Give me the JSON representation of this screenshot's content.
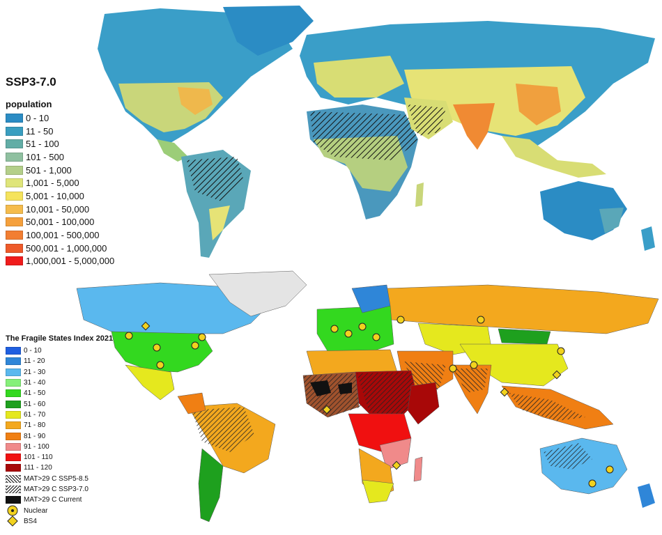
{
  "top_map": {
    "title": "SSP3-7.0",
    "legend_title": "population",
    "classes": [
      {
        "label": "0 - 10",
        "color": "#2b8cc4"
      },
      {
        "label": "11 - 50",
        "color": "#3a9ec0"
      },
      {
        "label": "51 - 100",
        "color": "#62ada6"
      },
      {
        "label": "101 - 500",
        "color": "#8fc0a0"
      },
      {
        "label": "501 - 1,000",
        "color": "#b4cf8a"
      },
      {
        "label": "1,001 - 5,000",
        "color": "#dfe57a"
      },
      {
        "label": "5,001 - 10,000",
        "color": "#f5e35c"
      },
      {
        "label": "10,001 - 50,000",
        "color": "#f5bc4d"
      },
      {
        "label": "50,001 - 100,000",
        "color": "#f5a03c"
      },
      {
        "label": "100,001 - 500,000",
        "color": "#f27e32"
      },
      {
        "label": "500,001 - 1,000,000",
        "color": "#ee5a2a"
      },
      {
        "label": "1,000,001 - 5,000,000",
        "color": "#f01c1c"
      }
    ]
  },
  "bottom_map": {
    "legend_title": "The Fragile States Index 2021",
    "classes": [
      {
        "label": "0 - 10",
        "color": "#1f5fe0"
      },
      {
        "label": "11 - 20",
        "color": "#2f86d8"
      },
      {
        "label": "21 - 30",
        "color": "#5ab8ee"
      },
      {
        "label": "31 - 40",
        "color": "#86f07a"
      },
      {
        "label": "41 - 50",
        "color": "#33d81f"
      },
      {
        "label": "51 - 60",
        "color": "#1ea01e"
      },
      {
        "label": "61 - 70",
        "color": "#e5e81e"
      },
      {
        "label": "71 - 80",
        "color": "#f3a81e"
      },
      {
        "label": "81 - 90",
        "color": "#f07f13"
      },
      {
        "label": "91 - 100",
        "color": "#f08a8a"
      },
      {
        "label": "101 - 110",
        "color": "#f01010"
      },
      {
        "label": "111 - 120",
        "color": "#a80808"
      }
    ],
    "overlays": [
      {
        "label": "MAT>29 C SSP5-8.5",
        "style": "hatch-a"
      },
      {
        "label": "MAT>29 C SSP3-7.0",
        "style": "hatch-b"
      },
      {
        "label": "MAT>29 C Current",
        "style": "solid-black"
      }
    ],
    "symbols": [
      {
        "label": "Nuclear",
        "icon": "radiation-icon"
      },
      {
        "label": "BS4",
        "icon": "biohazard-diamond-icon"
      }
    ],
    "land_colors": {
      "greenland": "#e4e4e4",
      "ocean": "#ffffff"
    }
  }
}
